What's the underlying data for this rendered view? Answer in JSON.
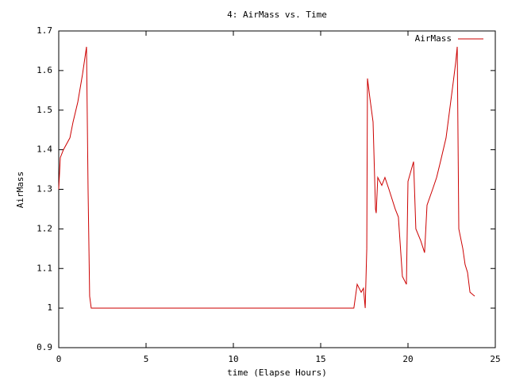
{
  "chart_data": {
    "type": "line",
    "title": "4: AirMass vs. Time",
    "x_label": "time (Elapse Hours)",
    "y_label": "AirMass",
    "x": [
      0,
      0.09,
      0.27,
      0.64,
      0.82,
      1.09,
      1.36,
      1.59,
      1.68,
      1.77,
      1.86,
      16.9,
      17.09,
      17.32,
      17.45,
      17.55,
      17.64,
      17.68,
      17.82,
      18.0,
      18.14,
      18.18,
      18.27,
      18.5,
      18.68,
      18.91,
      19.27,
      19.45,
      19.68,
      19.91,
      20.0,
      20.32,
      20.45,
      20.73,
      20.95,
      21.09,
      21.41,
      21.64,
      21.86,
      22.18,
      22.59,
      22.73,
      22.82,
      22.91,
      23.14,
      23.27,
      23.41,
      23.55,
      23.82
    ],
    "series": [
      {
        "name": "AirMass",
        "color": "#cc0000",
        "values": [
          1.3,
          1.38,
          1.4,
          1.43,
          1.47,
          1.52,
          1.59,
          1.66,
          1.3,
          1.03,
          1.0,
          1.0,
          1.06,
          1.04,
          1.05,
          1.0,
          1.15,
          1.58,
          1.53,
          1.47,
          1.25,
          1.24,
          1.33,
          1.31,
          1.33,
          1.3,
          1.25,
          1.23,
          1.08,
          1.06,
          1.32,
          1.37,
          1.2,
          1.17,
          1.14,
          1.26,
          1.3,
          1.33,
          1.37,
          1.43,
          1.57,
          1.62,
          1.66,
          1.2,
          1.15,
          1.11,
          1.09,
          1.04,
          1.03
        ]
      }
    ],
    "xlim": [
      0,
      25
    ],
    "xticks": [
      0,
      5,
      10,
      15,
      20,
      25
    ],
    "ylim": [
      0.9,
      1.7
    ],
    "yticks": [
      0.9,
      1,
      1.1,
      1.2,
      1.3,
      1.4,
      1.5,
      1.6,
      1.7
    ],
    "legend": "top-right"
  }
}
